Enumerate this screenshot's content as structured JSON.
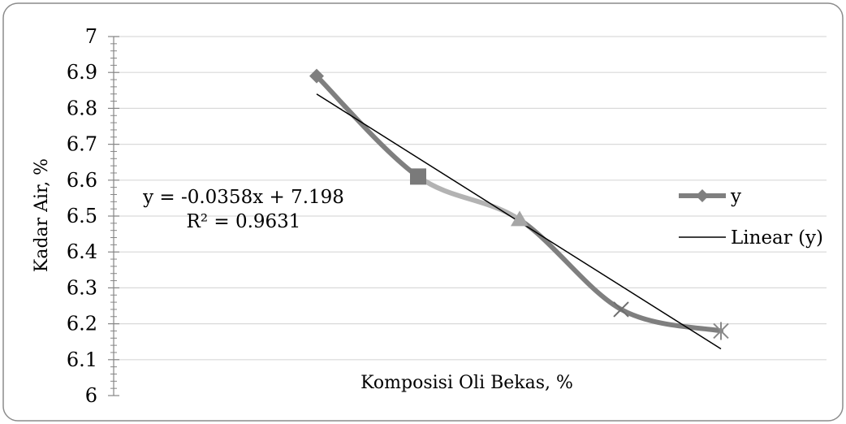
{
  "chart_data": {
    "type": "line",
    "title": "",
    "xlabel": "Komposisi Oli Bekas, %",
    "ylabel": "Kadar Air, %",
    "ylim": [
      6,
      7
    ],
    "y_ticks": [
      "6",
      "6.1",
      "6.2",
      "6.3",
      "6.4",
      "6.5",
      "6.6",
      "6.7",
      "6.8",
      "6.9",
      "7"
    ],
    "grid": true,
    "legend_position": "right",
    "series": [
      {
        "name": "y",
        "x": [
          1,
          2,
          3,
          4,
          5
        ],
        "values": [
          6.89,
          6.61,
          6.49,
          6.24,
          6.18
        ],
        "markers": [
          "diamond",
          "square",
          "triangle",
          "x",
          "star"
        ],
        "color": "#7f7f7f"
      }
    ],
    "trendline": {
      "name": "Linear (y)",
      "type": "linear",
      "slope": -0.0358,
      "intercept": 7.198,
      "r_squared": 0.9631,
      "start_value": 6.84,
      "end_value": 6.13,
      "color": "#000000"
    },
    "annotations": {
      "equation": "y = -0.0358x + 7.198",
      "r_squared": "R² = 0.9631"
    }
  }
}
